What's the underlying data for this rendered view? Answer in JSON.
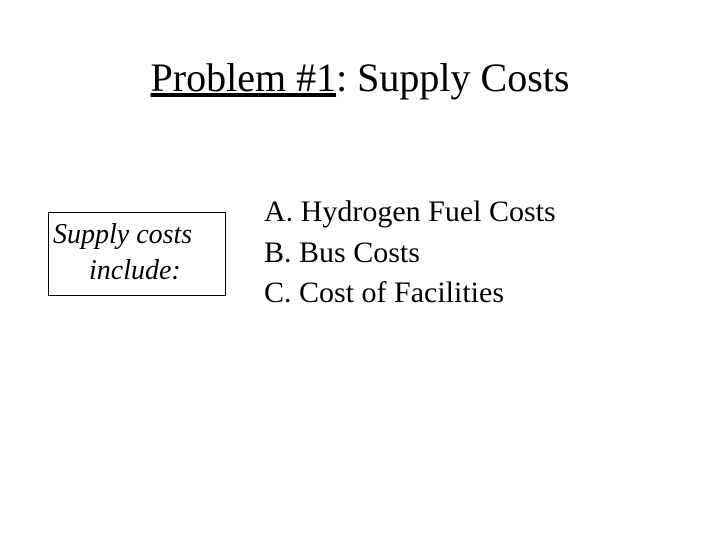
{
  "title": {
    "underlined": "Problem #1",
    "rest": ": Supply Costs",
    "fontsize": 40
  },
  "box": {
    "line1": "Supply costs",
    "line2": "include:",
    "fontsize": 28,
    "border_color": "#000000"
  },
  "list": {
    "items": [
      "A. Hydrogen Fuel Costs",
      "B. Bus Costs",
      "C. Cost of Facilities"
    ],
    "fontsize": 30
  },
  "background_color": "#ffffff",
  "text_color": "#000000"
}
